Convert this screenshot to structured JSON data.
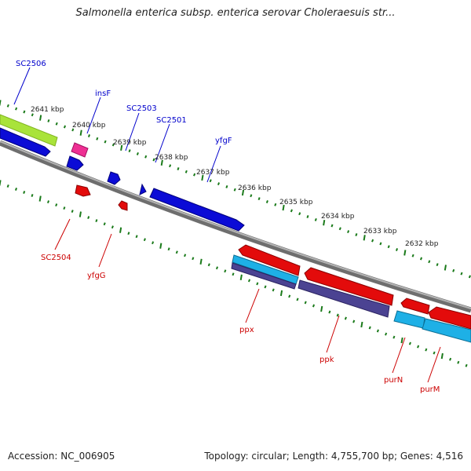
{
  "title": "Salmonella enterica subsp. enterica serovar Choleraesuis str...",
  "footer": {
    "accession": "Accession: NC_006905",
    "topology": "Topology: circular; Length: 4,755,700 bp; Genes: 4,516"
  },
  "colors": {
    "background": "#ffffff",
    "backbone": "#8c8c8c",
    "tick": "#1a7a1a",
    "forward_label": "#0000cc",
    "reverse_label": "#cc0000",
    "cds_forward": "#0b0bd6",
    "cds_reverse": "#e30b0b",
    "trna": "#ee2f93",
    "feature_lime": "#a9e33a",
    "feature_cyan": "#1eb0e6",
    "feature_purple": "#4b4392"
  },
  "kbp_labels": [
    "2641 kbp",
    "2640 kbp",
    "2639 kbp",
    "2638 kbp",
    "2637 kbp",
    "2636 kbp",
    "2635 kbp",
    "2634 kbp",
    "2633 kbp",
    "2632 kbp"
  ],
  "gene_labels_forward": [
    "SC2506",
    "insF",
    "SC2503",
    "SC2501",
    "yfgF"
  ],
  "gene_labels_reverse": [
    "SC2504",
    "yfgG",
    "ppx",
    "ppk",
    "purN",
    "purM"
  ]
}
